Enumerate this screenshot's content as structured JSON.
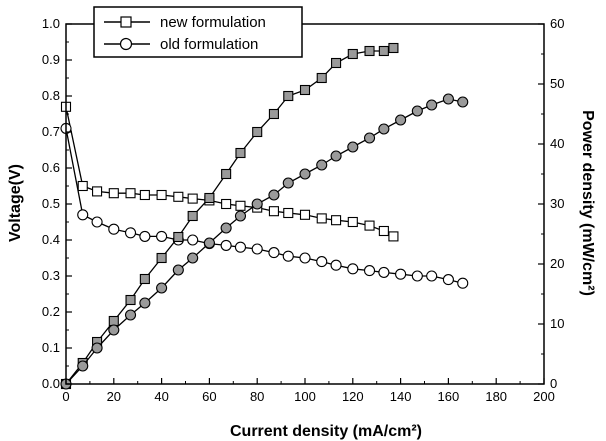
{
  "chart_data": {
    "type": "line",
    "title": "",
    "xlabel": "Current density (mA/cm²)",
    "ylabel_left": "Voltage(V)",
    "ylabel_right": "Power density (mW/cm²)",
    "xlim": [
      0,
      200
    ],
    "ylim_left": [
      0.0,
      1.0
    ],
    "ylim_right": [
      0,
      60
    ],
    "x_ticks": [
      "0",
      "20",
      "40",
      "60",
      "80",
      "100",
      "120",
      "140",
      "160",
      "180",
      "200"
    ],
    "y_left_ticks": [
      "0.0",
      "0.1",
      "0.2",
      "0.3",
      "0.4",
      "0.5",
      "0.6",
      "0.7",
      "0.8",
      "0.9",
      "1.0"
    ],
    "y_right_ticks": [
      "0",
      "10",
      "20",
      "30",
      "40",
      "50",
      "60"
    ],
    "legend_position": "top-left",
    "grid": false,
    "series": [
      {
        "name": "new formulation",
        "axis": "left",
        "marker": "square",
        "fill": "open",
        "x": [
          0,
          7,
          13,
          20,
          27,
          33,
          40,
          47,
          53,
          60,
          67,
          73,
          80,
          87,
          93,
          100,
          107,
          113,
          120,
          127,
          133,
          137
        ],
        "y": [
          0.77,
          0.55,
          0.535,
          0.53,
          0.53,
          0.525,
          0.525,
          0.52,
          0.515,
          0.51,
          0.5,
          0.495,
          0.49,
          0.48,
          0.475,
          0.47,
          0.46,
          0.455,
          0.45,
          0.44,
          0.425,
          0.41
        ]
      },
      {
        "name": "old formulation",
        "axis": "left",
        "marker": "circle",
        "fill": "open",
        "x": [
          0,
          7,
          13,
          20,
          27,
          33,
          40,
          47,
          53,
          60,
          67,
          73,
          80,
          87,
          93,
          100,
          107,
          113,
          120,
          127,
          133,
          140,
          147,
          153,
          160,
          166
        ],
        "y": [
          0.71,
          0.47,
          0.45,
          0.43,
          0.42,
          0.41,
          0.41,
          0.4,
          0.4,
          0.39,
          0.385,
          0.38,
          0.375,
          0.365,
          0.355,
          0.35,
          0.34,
          0.33,
          0.32,
          0.315,
          0.31,
          0.305,
          0.3,
          0.3,
          0.29,
          0.28
        ]
      },
      {
        "name": "",
        "axis": "right",
        "marker": "square",
        "fill": "solid",
        "x": [
          0,
          7,
          13,
          20,
          27,
          33,
          40,
          47,
          53,
          60,
          67,
          73,
          80,
          87,
          93,
          100,
          107,
          113,
          120,
          127,
          133,
          137
        ],
        "y": [
          0,
          3.5,
          7,
          10.5,
          14,
          17.5,
          21,
          24.5,
          28,
          31,
          35,
          38.5,
          42,
          45,
          48,
          49,
          51,
          53.5,
          55,
          55.5,
          55.5,
          56
        ]
      },
      {
        "name": "",
        "axis": "right",
        "marker": "circle",
        "fill": "solid",
        "x": [
          0,
          7,
          13,
          20,
          27,
          33,
          40,
          47,
          53,
          60,
          67,
          73,
          80,
          87,
          93,
          100,
          107,
          113,
          120,
          127,
          133,
          140,
          147,
          153,
          160,
          166
        ],
        "y": [
          0,
          3,
          6,
          9,
          11.5,
          13.5,
          16,
          19,
          21,
          23.5,
          26,
          28,
          30,
          31.5,
          33.5,
          35,
          36.5,
          38,
          39.5,
          41,
          42.5,
          44,
          45.5,
          46.5,
          47.5,
          47
        ]
      }
    ]
  }
}
